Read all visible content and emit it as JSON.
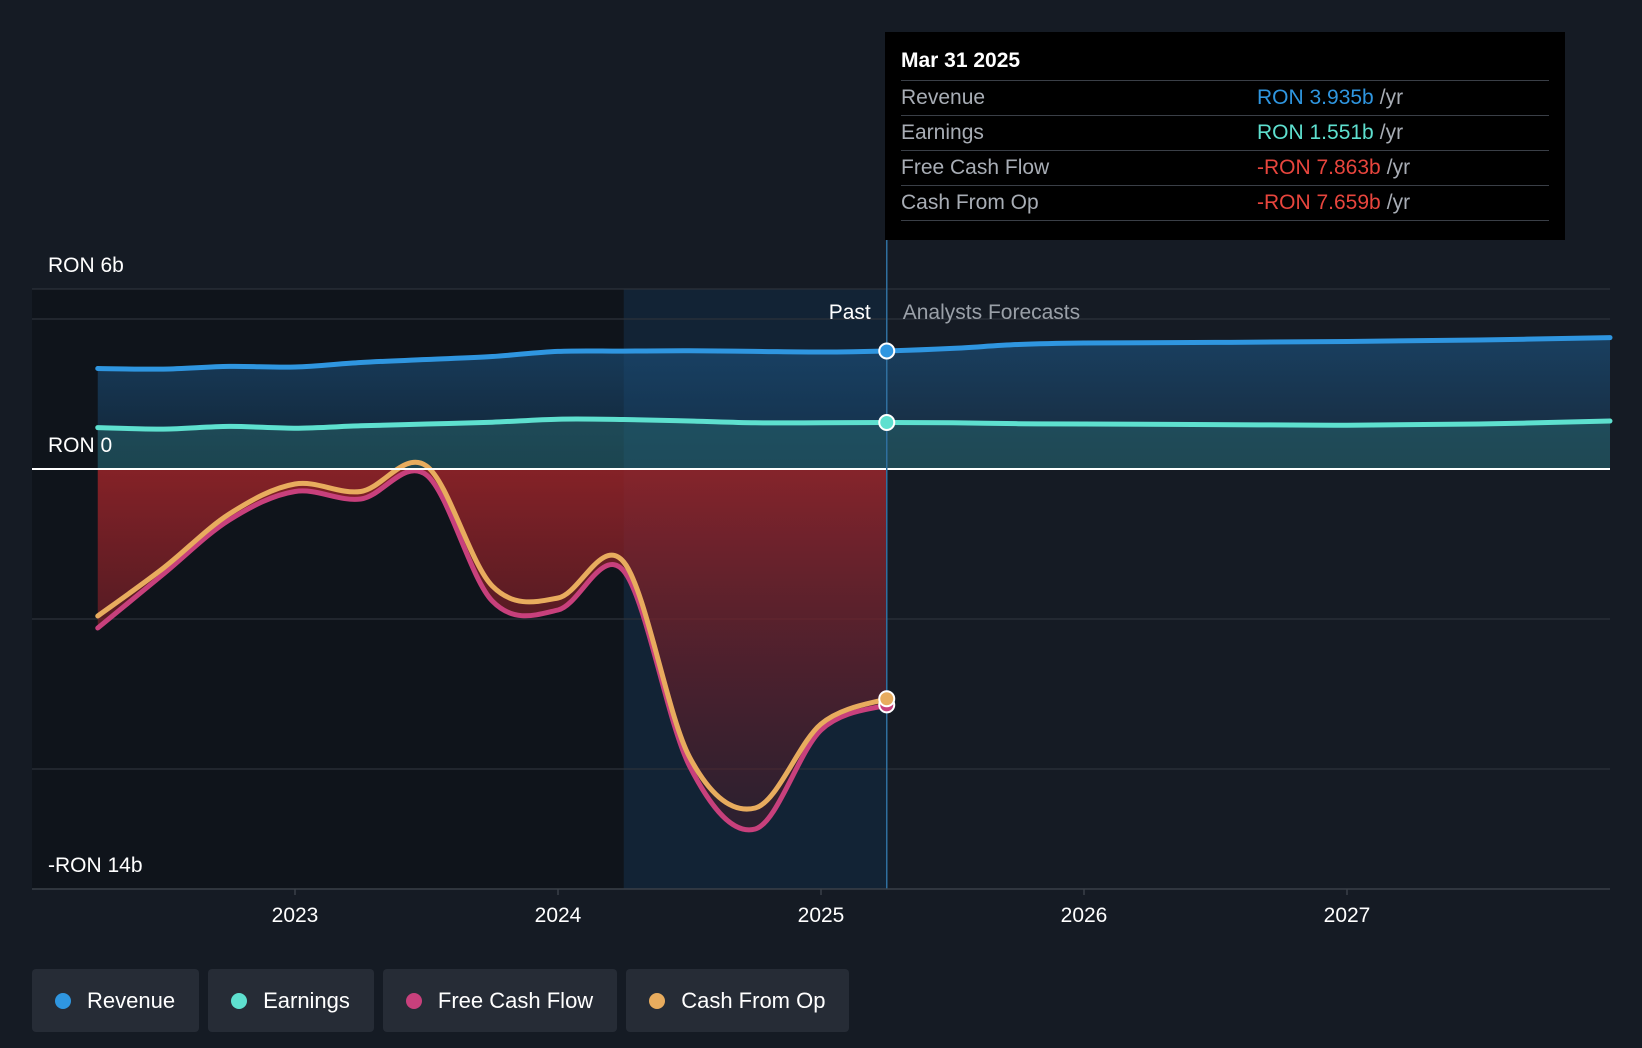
{
  "colors": {
    "background": "#151b24",
    "revenue": "#2f96e0",
    "earnings": "#5ee0cf",
    "free_cash_flow": "#c8407c",
    "cash_from_op": "#e8ac5e",
    "negative_value": "#e8453d"
  },
  "tooltip": {
    "date": "Mar 31 2025",
    "rows": [
      {
        "label": "Revenue",
        "value": "RON 3.935b",
        "unit": "/yr",
        "color": "#2f96e0"
      },
      {
        "label": "Earnings",
        "value": "RON 1.551b",
        "unit": "/yr",
        "color": "#5ee0cf"
      },
      {
        "label": "Free Cash Flow",
        "value": "-RON 7.863b",
        "unit": "/yr",
        "color": "#e8453d"
      },
      {
        "label": "Cash From Op",
        "value": "-RON 7.659b",
        "unit": "/yr",
        "color": "#e8453d"
      }
    ]
  },
  "legend": [
    {
      "label": "Revenue",
      "color": "#2f96e0"
    },
    {
      "label": "Earnings",
      "color": "#5ee0cf"
    },
    {
      "label": "Free Cash Flow",
      "color": "#c8407c"
    },
    {
      "label": "Cash From Op",
      "color": "#e8ac5e"
    }
  ],
  "chart_data": {
    "type": "line",
    "title": "",
    "y_labels": {
      "top": "RON 6b",
      "zero": "RON 0",
      "bottom": "-RON 14b"
    },
    "ylim": [
      -14,
      6
    ],
    "y_gridlines": [
      6,
      5,
      0,
      -5,
      -10
    ],
    "xlim": [
      2022.0,
      2028.0
    ],
    "x_ticks": [
      2023,
      2024,
      2025,
      2026,
      2027
    ],
    "x_tick_labels": [
      "2023",
      "2024",
      "2025",
      "2026",
      "2027"
    ],
    "divider": {
      "x": 2025.25,
      "past_label": "Past",
      "forecast_label": "Analysts Forecasts"
    },
    "highlight_start": 2024.25,
    "series": [
      {
        "name": "Revenue",
        "x": [
          2022.25,
          2022.5,
          2022.75,
          2023.0,
          2023.25,
          2023.5,
          2023.75,
          2024.0,
          2024.25,
          2024.5,
          2024.75,
          2025.0,
          2025.25,
          2025.5,
          2025.75,
          2026.0,
          2026.5,
          2027.0,
          2027.5,
          2028.0
        ],
        "y": [
          3.35,
          3.33,
          3.42,
          3.4,
          3.55,
          3.65,
          3.75,
          3.92,
          3.93,
          3.94,
          3.92,
          3.9,
          3.935,
          4.02,
          4.15,
          4.2,
          4.22,
          4.25,
          4.3,
          4.38
        ]
      },
      {
        "name": "Earnings",
        "x": [
          2022.25,
          2022.5,
          2022.75,
          2023.0,
          2023.25,
          2023.5,
          2023.75,
          2024.0,
          2024.25,
          2024.5,
          2024.75,
          2025.0,
          2025.25,
          2025.5,
          2025.75,
          2026.0,
          2026.5,
          2027.0,
          2027.5,
          2028.0
        ],
        "y": [
          1.38,
          1.33,
          1.42,
          1.36,
          1.44,
          1.5,
          1.56,
          1.66,
          1.65,
          1.6,
          1.54,
          1.54,
          1.551,
          1.54,
          1.51,
          1.5,
          1.48,
          1.46,
          1.5,
          1.6
        ]
      },
      {
        "name": "Free Cash Flow",
        "x": [
          2022.25,
          2022.5,
          2022.75,
          2023.0,
          2023.25,
          2023.5,
          2023.75,
          2024.0,
          2024.25,
          2024.5,
          2024.75,
          2025.0,
          2025.25
        ],
        "y": [
          -5.3,
          -3.5,
          -1.7,
          -0.75,
          -1.0,
          -0.2,
          -4.4,
          -4.7,
          -3.4,
          -9.9,
          -12.0,
          -8.7,
          -7.863
        ]
      },
      {
        "name": "Cash From Op",
        "x": [
          2022.25,
          2022.5,
          2022.75,
          2023.0,
          2023.25,
          2023.5,
          2023.75,
          2024.0,
          2024.25,
          2024.5,
          2024.75,
          2025.0,
          2025.25
        ],
        "y": [
          -4.9,
          -3.3,
          -1.5,
          -0.5,
          -0.75,
          0.1,
          -3.9,
          -4.3,
          -3.1,
          -9.6,
          -11.3,
          -8.5,
          -7.659
        ]
      }
    ]
  }
}
